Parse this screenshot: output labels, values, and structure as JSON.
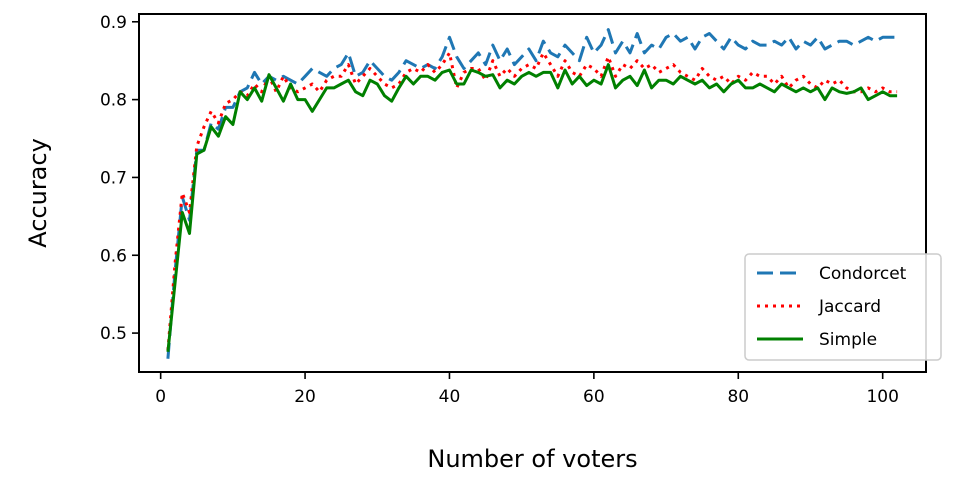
{
  "chart_data": {
    "type": "line",
    "xlabel": "Number of voters",
    "ylabel": "Accuracy",
    "xlim": [
      -3,
      106
    ],
    "ylim": [
      0.45,
      0.91
    ],
    "xticks": [
      0,
      20,
      40,
      60,
      80,
      100
    ],
    "yticks": [
      0.5,
      0.6,
      0.7,
      0.8,
      0.9
    ],
    "xtick_labels": [
      "0",
      "20",
      "40",
      "60",
      "80",
      "100"
    ],
    "ytick_labels": [
      "0.5",
      "0.6",
      "0.7",
      "0.8",
      "0.9"
    ],
    "grid": false,
    "legend_position": "lower-right",
    "series": [
      {
        "name": "Condorcet",
        "color": "#1f77b4",
        "style": "dashed",
        "x": [
          1,
          2,
          3,
          4,
          5,
          6,
          7,
          8,
          9,
          10,
          11,
          12,
          13,
          14,
          15,
          16,
          17,
          18,
          19,
          20,
          21,
          22,
          23,
          24,
          25,
          26,
          27,
          28,
          29,
          30,
          31,
          32,
          33,
          34,
          35,
          36,
          37,
          38,
          39,
          40,
          41,
          42,
          43,
          44,
          45,
          46,
          47,
          48,
          49,
          50,
          51,
          52,
          53,
          54,
          55,
          56,
          57,
          58,
          59,
          60,
          61,
          62,
          63,
          64,
          65,
          66,
          67,
          68,
          69,
          70,
          71,
          72,
          73,
          74,
          75,
          76,
          77,
          78,
          79,
          80,
          81,
          82,
          83,
          84,
          85,
          86,
          87,
          88,
          89,
          90,
          91,
          92,
          93,
          94,
          95,
          96,
          97,
          98,
          99,
          100,
          101,
          102
        ],
        "values": [
          0.467,
          0.58,
          0.675,
          0.645,
          0.735,
          0.735,
          0.77,
          0.762,
          0.79,
          0.79,
          0.81,
          0.815,
          0.835,
          0.82,
          0.83,
          0.825,
          0.83,
          0.825,
          0.82,
          0.83,
          0.84,
          0.835,
          0.83,
          0.84,
          0.845,
          0.86,
          0.83,
          0.835,
          0.85,
          0.84,
          0.83,
          0.825,
          0.835,
          0.85,
          0.845,
          0.84,
          0.845,
          0.84,
          0.855,
          0.88,
          0.855,
          0.84,
          0.85,
          0.86,
          0.845,
          0.87,
          0.85,
          0.865,
          0.845,
          0.855,
          0.865,
          0.85,
          0.875,
          0.86,
          0.855,
          0.87,
          0.86,
          0.85,
          0.88,
          0.86,
          0.87,
          0.89,
          0.86,
          0.875,
          0.86,
          0.885,
          0.86,
          0.87,
          0.865,
          0.88,
          0.885,
          0.875,
          0.88,
          0.865,
          0.88,
          0.885,
          0.875,
          0.865,
          0.88,
          0.87,
          0.865,
          0.875,
          0.87,
          0.87,
          0.875,
          0.87,
          0.88,
          0.865,
          0.875,
          0.87,
          0.88,
          0.865,
          0.87,
          0.875,
          0.875,
          0.87,
          0.875,
          0.88,
          0.875,
          0.88,
          0.88,
          0.88
        ]
      },
      {
        "name": "Jaccard",
        "color": "#ff0000",
        "style": "dotted",
        "x": [
          1,
          2,
          3,
          4,
          5,
          6,
          7,
          8,
          9,
          10,
          11,
          12,
          13,
          14,
          15,
          16,
          17,
          18,
          19,
          20,
          21,
          22,
          23,
          24,
          25,
          26,
          27,
          28,
          29,
          30,
          31,
          32,
          33,
          34,
          35,
          36,
          37,
          38,
          39,
          40,
          41,
          42,
          43,
          44,
          45,
          46,
          47,
          48,
          49,
          50,
          51,
          52,
          53,
          54,
          55,
          56,
          57,
          58,
          59,
          60,
          61,
          62,
          63,
          64,
          65,
          66,
          67,
          68,
          69,
          70,
          71,
          72,
          73,
          74,
          75,
          76,
          77,
          78,
          79,
          80,
          81,
          82,
          83,
          84,
          85,
          86,
          87,
          88,
          89,
          90,
          91,
          92,
          93,
          94,
          95,
          96,
          97,
          98,
          99,
          100,
          101,
          102
        ],
        "values": [
          0.478,
          0.59,
          0.68,
          0.655,
          0.74,
          0.765,
          0.785,
          0.77,
          0.795,
          0.8,
          0.81,
          0.805,
          0.82,
          0.81,
          0.83,
          0.81,
          0.83,
          0.815,
          0.81,
          0.815,
          0.82,
          0.81,
          0.825,
          0.83,
          0.83,
          0.845,
          0.82,
          0.83,
          0.84,
          0.83,
          0.82,
          0.815,
          0.82,
          0.835,
          0.84,
          0.835,
          0.845,
          0.835,
          0.845,
          0.86,
          0.815,
          0.835,
          0.84,
          0.84,
          0.825,
          0.85,
          0.83,
          0.84,
          0.83,
          0.84,
          0.845,
          0.84,
          0.86,
          0.845,
          0.83,
          0.85,
          0.835,
          0.83,
          0.845,
          0.84,
          0.83,
          0.855,
          0.83,
          0.845,
          0.84,
          0.85,
          0.84,
          0.845,
          0.835,
          0.84,
          0.845,
          0.835,
          0.83,
          0.825,
          0.84,
          0.83,
          0.825,
          0.83,
          0.82,
          0.83,
          0.825,
          0.835,
          0.83,
          0.83,
          0.82,
          0.83,
          0.815,
          0.825,
          0.83,
          0.82,
          0.815,
          0.825,
          0.82,
          0.825,
          0.815,
          0.81,
          0.81,
          0.815,
          0.81,
          0.815,
          0.81,
          0.81
        ]
      },
      {
        "name": "Simple",
        "color": "#008000",
        "style": "solid",
        "x": [
          1,
          2,
          3,
          4,
          5,
          6,
          7,
          8,
          9,
          10,
          11,
          12,
          13,
          14,
          15,
          16,
          17,
          18,
          19,
          20,
          21,
          22,
          23,
          24,
          25,
          26,
          27,
          28,
          29,
          30,
          31,
          32,
          33,
          34,
          35,
          36,
          37,
          38,
          39,
          40,
          41,
          42,
          43,
          44,
          45,
          46,
          47,
          48,
          49,
          50,
          51,
          52,
          53,
          54,
          55,
          56,
          57,
          58,
          59,
          60,
          61,
          62,
          63,
          64,
          65,
          66,
          67,
          68,
          69,
          70,
          71,
          72,
          73,
          74,
          75,
          76,
          77,
          78,
          79,
          80,
          81,
          82,
          83,
          84,
          85,
          86,
          87,
          88,
          89,
          90,
          91,
          92,
          93,
          94,
          95,
          96,
          97,
          98,
          99,
          100,
          101,
          102
        ],
        "values": [
          0.476,
          0.565,
          0.655,
          0.628,
          0.73,
          0.735,
          0.765,
          0.753,
          0.778,
          0.768,
          0.81,
          0.8,
          0.815,
          0.798,
          0.832,
          0.815,
          0.798,
          0.82,
          0.8,
          0.8,
          0.785,
          0.8,
          0.815,
          0.815,
          0.82,
          0.825,
          0.81,
          0.805,
          0.825,
          0.82,
          0.805,
          0.798,
          0.815,
          0.83,
          0.82,
          0.83,
          0.83,
          0.825,
          0.835,
          0.838,
          0.82,
          0.82,
          0.838,
          0.835,
          0.83,
          0.832,
          0.815,
          0.825,
          0.82,
          0.83,
          0.835,
          0.83,
          0.835,
          0.835,
          0.815,
          0.838,
          0.82,
          0.83,
          0.818,
          0.825,
          0.82,
          0.845,
          0.815,
          0.825,
          0.83,
          0.818,
          0.838,
          0.815,
          0.825,
          0.825,
          0.82,
          0.83,
          0.825,
          0.82,
          0.825,
          0.815,
          0.82,
          0.81,
          0.82,
          0.825,
          0.815,
          0.815,
          0.82,
          0.815,
          0.81,
          0.82,
          0.815,
          0.81,
          0.815,
          0.81,
          0.815,
          0.8,
          0.815,
          0.81,
          0.808,
          0.81,
          0.815,
          0.8,
          0.805,
          0.81,
          0.805,
          0.805
        ]
      }
    ]
  }
}
